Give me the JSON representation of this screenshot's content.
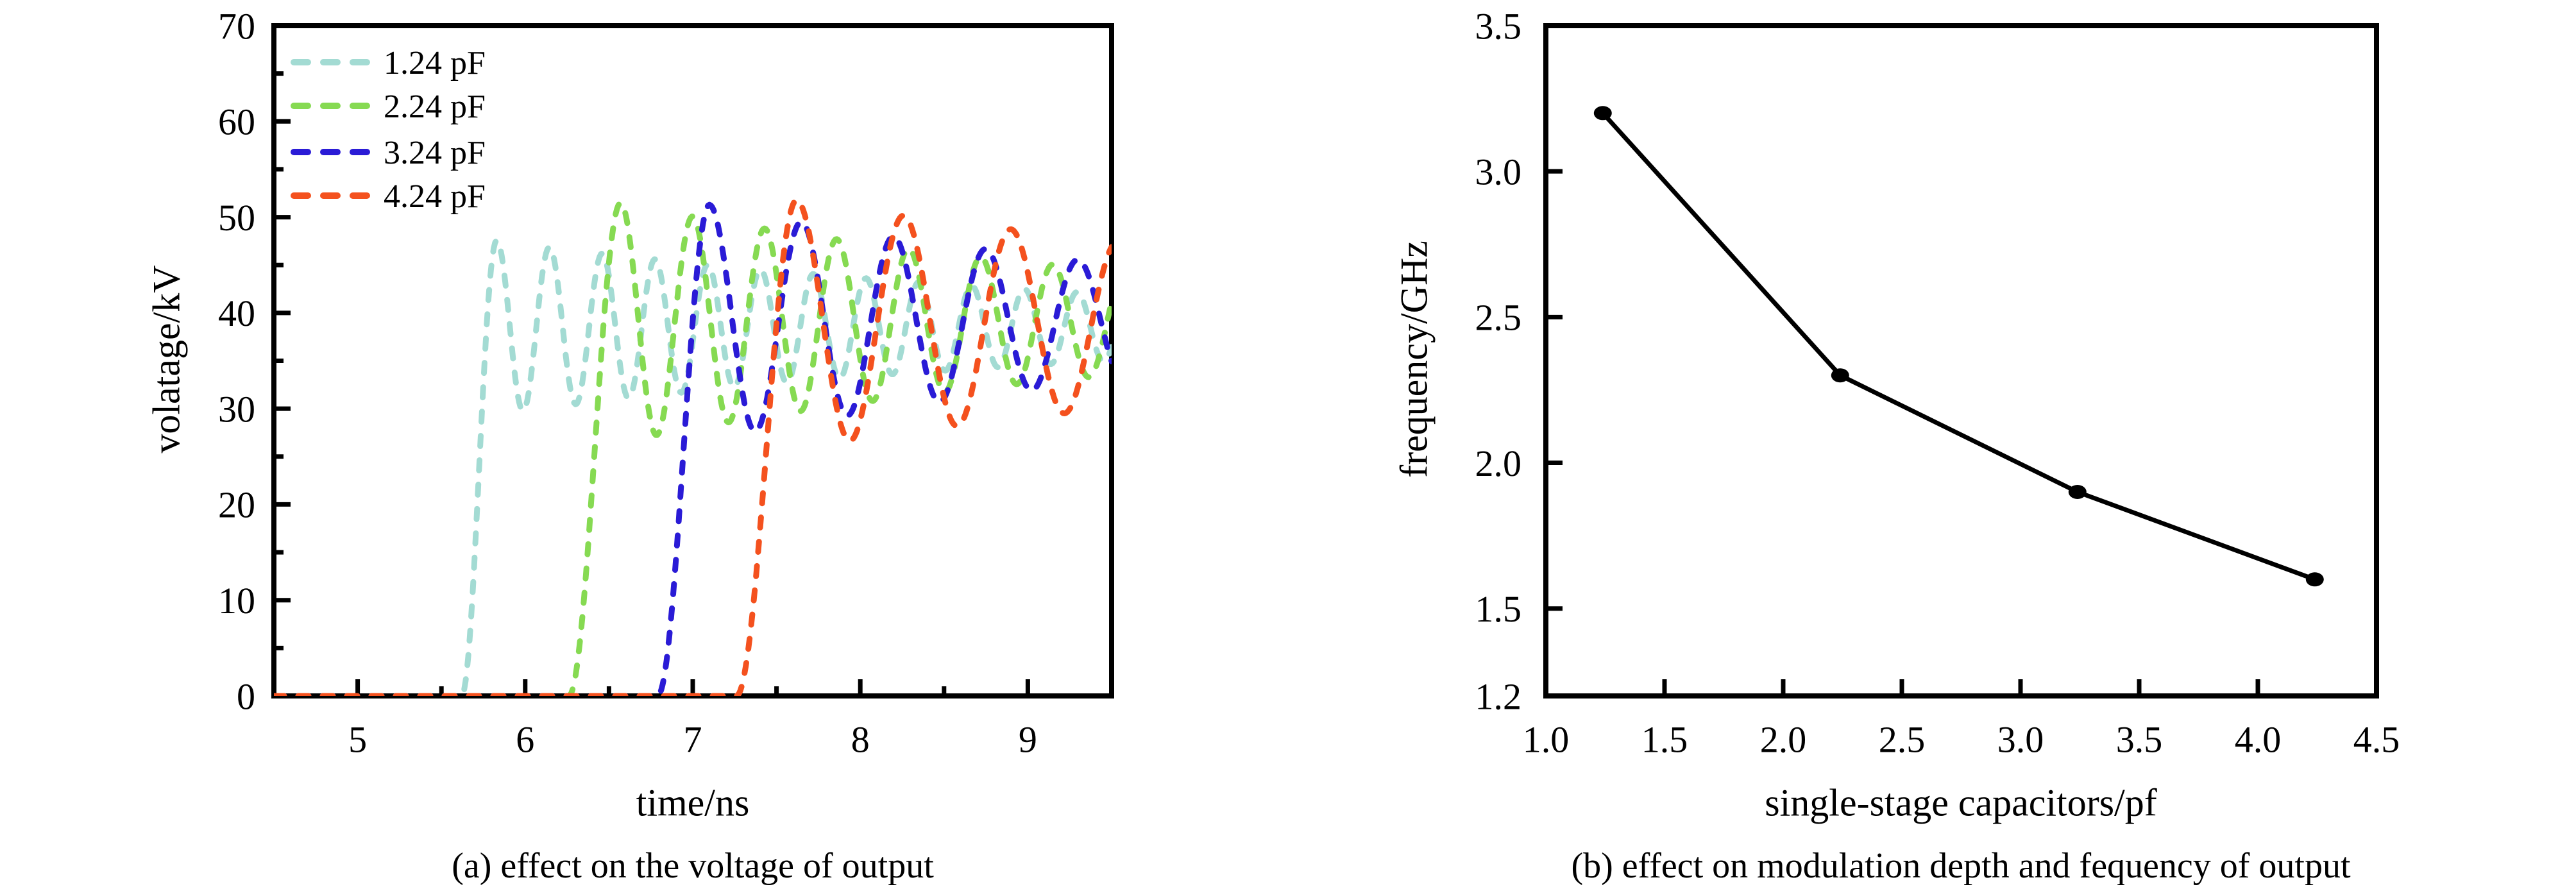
{
  "figure": {
    "background": "#ffffff",
    "text_color": "#000000"
  },
  "charts": [
    {
      "id": "a",
      "caption": "(a) effect on the voltage of output",
      "xlabel": "time/ns",
      "ylabel": "volatage/kV",
      "chart_data": {
        "type": "line",
        "x_range": [
          4.5,
          9.5
        ],
        "y_range": [
          0,
          70
        ],
        "x_major_ticks": [
          5,
          6,
          7,
          8,
          9
        ],
        "x_tick_labels": [
          "5",
          "6",
          "7",
          "8",
          "9"
        ],
        "x_minor_ticks": [
          5.5,
          6.5,
          7.5,
          8.5
        ],
        "y_major_ticks": [
          70,
          60,
          50,
          40,
          30,
          20,
          10,
          0
        ],
        "y_tick_labels": [
          "70",
          "60",
          "50",
          "40",
          "30",
          "20",
          "10",
          "0"
        ],
        "y_minor_ticks": [
          65,
          55,
          45,
          35,
          25,
          15,
          5
        ],
        "grid": false,
        "legend_position": "top-left",
        "line_style": "dashed",
        "series": [
          {
            "name": "1.24 pF",
            "color": "#A3DBD3",
            "onset_ns": 5.62,
            "first_peak_ns": 5.83,
            "peak_kV": 47.6,
            "settle_kV": 38.5,
            "period_ns": 0.315,
            "decay_per_ns": 0.26
          },
          {
            "name": "2.24 pF",
            "color": "#86DA52",
            "onset_ns": 6.26,
            "first_peak_ns": 6.57,
            "peak_kV": 51.5,
            "settle_kV": 39.0,
            "period_ns": 0.43,
            "decay_per_ns": 0.28
          },
          {
            "name": "3.24 pF",
            "color": "#2A1BD6",
            "onset_ns": 6.79,
            "first_peak_ns": 7.1,
            "peak_kV": 51.3,
            "settle_kV": 39.0,
            "period_ns": 0.55,
            "decay_per_ns": 0.285
          },
          {
            "name": "4.24 pF",
            "color": "#F4511E",
            "onset_ns": 7.26,
            "first_peak_ns": 7.62,
            "peak_kV": 51.8,
            "settle_kV": 38.8,
            "period_ns": 0.64,
            "decay_per_ns": 0.21
          }
        ]
      }
    },
    {
      "id": "b",
      "caption": "(b) effect on modulation depth and fequency of output",
      "xlabel": "single-stage capacitors/pf",
      "ylabel": "frequency/GHz",
      "chart_data": {
        "type": "scatter",
        "x_range": [
          1.0,
          4.5
        ],
        "y_range": [
          1.2,
          3.5
        ],
        "x_ticks": [
          1.0,
          1.5,
          2.0,
          2.5,
          3.0,
          3.5,
          4.0,
          4.5
        ],
        "x_tick_labels": [
          "1.0",
          "1.5",
          "2.0",
          "2.5",
          "3.0",
          "3.5",
          "4.0",
          "4.5"
        ],
        "y_ticks": [
          3.5,
          3.0,
          2.5,
          2.0,
          1.5,
          1.2
        ],
        "y_tick_labels": [
          "3.5",
          "3.0",
          "2.5",
          "2.0",
          "1.5",
          "1.2"
        ],
        "grid": false,
        "color": "#000000",
        "marker": "filled-circle",
        "x": [
          1.24,
          2.24,
          3.24,
          4.24
        ],
        "y": [
          3.2,
          2.3,
          1.9,
          1.6
        ]
      }
    }
  ]
}
